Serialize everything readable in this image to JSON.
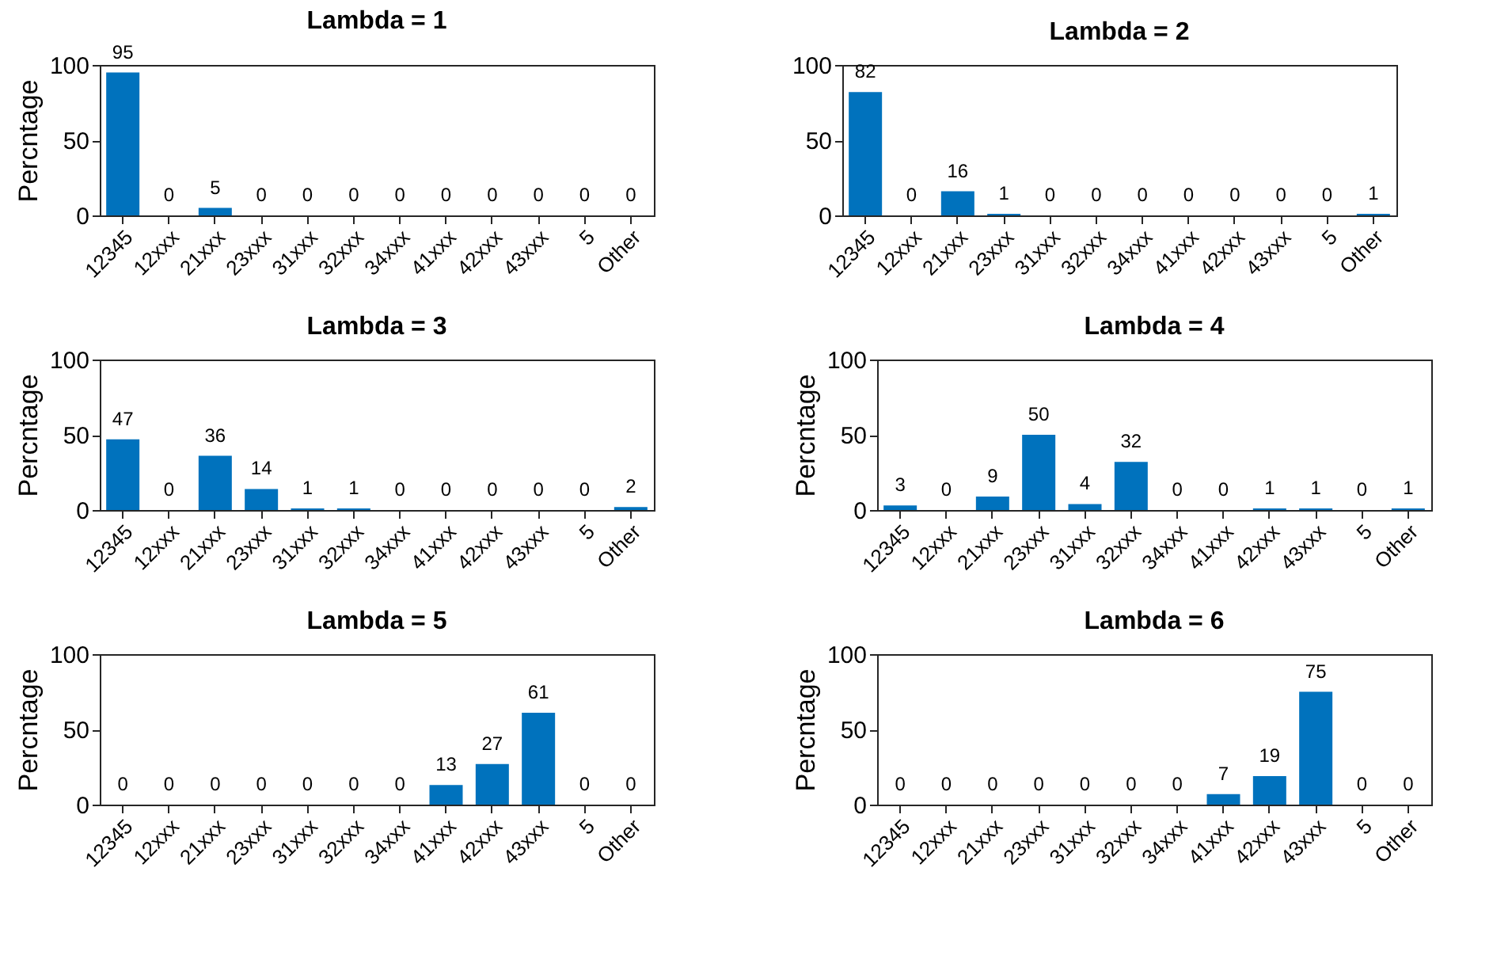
{
  "chart_data": [
    {
      "type": "bar",
      "title": "Lambda = 1",
      "ylabel": "Percntage",
      "categories": [
        "12345",
        "12xxx",
        "21xxx",
        "23xxx",
        "31xxx",
        "32xxx",
        "34xxx",
        "41xxx",
        "42xxx",
        "43xxx",
        "5",
        "Other"
      ],
      "values": [
        95,
        0,
        5,
        0,
        0,
        0,
        0,
        0,
        0,
        0,
        0,
        0
      ],
      "color": "#0072bd",
      "ylim": [
        0,
        100
      ],
      "yticks": [
        0,
        50,
        100
      ],
      "data_labels": true
    },
    {
      "type": "bar",
      "title": "Lambda = 2",
      "categories": [
        "12345",
        "12xxx",
        "21xxx",
        "23xxx",
        "31xxx",
        "32xxx",
        "34xxx",
        "41xxx",
        "42xxx",
        "43xxx",
        "5",
        "Other"
      ],
      "values": [
        82,
        0,
        16,
        1,
        0,
        0,
        0,
        0,
        0,
        0,
        0,
        1
      ],
      "color": "#0072bd",
      "ylim": [
        0,
        100
      ],
      "yticks": [
        0,
        50,
        100
      ],
      "data_labels": true
    },
    {
      "type": "bar",
      "title": "Lambda = 3",
      "ylabel": "Percntage",
      "categories": [
        "12345",
        "12xxx",
        "21xxx",
        "23xxx",
        "31xxx",
        "32xxx",
        "34xxx",
        "41xxx",
        "42xxx",
        "43xxx",
        "5",
        "Other"
      ],
      "values": [
        47,
        0,
        36,
        14,
        1,
        1,
        0,
        0,
        0,
        0,
        0,
        2
      ],
      "color": "#0072bd",
      "ylim": [
        0,
        100
      ],
      "yticks": [
        0,
        50,
        100
      ],
      "data_labels": true
    },
    {
      "type": "bar",
      "title": "Lambda = 4",
      "ylabel": "Percntage",
      "categories": [
        "12345",
        "12xxx",
        "21xxx",
        "23xxx",
        "31xxx",
        "32xxx",
        "34xxx",
        "41xxx",
        "42xxx",
        "43xxx",
        "5",
        "Other"
      ],
      "values": [
        3,
        0,
        9,
        50,
        4,
        32,
        0,
        0,
        1,
        1,
        0,
        1
      ],
      "color": "#0072bd",
      "ylim": [
        0,
        100
      ],
      "yticks": [
        0,
        50,
        100
      ],
      "data_labels": true
    },
    {
      "type": "bar",
      "title": "Lambda = 5",
      "ylabel": "Percntage",
      "categories": [
        "12345",
        "12xxx",
        "21xxx",
        "23xxx",
        "31xxx",
        "32xxx",
        "34xxx",
        "41xxx",
        "42xxx",
        "43xxx",
        "5",
        "Other"
      ],
      "values": [
        0,
        0,
        0,
        0,
        0,
        0,
        0,
        13,
        27,
        61,
        0,
        0
      ],
      "color": "#0072bd",
      "ylim": [
        0,
        100
      ],
      "yticks": [
        0,
        50,
        100
      ],
      "data_labels": true
    },
    {
      "type": "bar",
      "title": "Lambda = 6",
      "ylabel": "Percntage",
      "categories": [
        "12345",
        "12xxx",
        "21xxx",
        "23xxx",
        "31xxx",
        "32xxx",
        "34xxx",
        "41xxx",
        "42xxx",
        "43xxx",
        "5",
        "Other"
      ],
      "values": [
        0,
        0,
        0,
        0,
        0,
        0,
        0,
        7,
        19,
        75,
        0,
        0
      ],
      "color": "#0072bd",
      "ylim": [
        0,
        100
      ],
      "yticks": [
        0,
        50,
        100
      ],
      "data_labels": true
    }
  ]
}
